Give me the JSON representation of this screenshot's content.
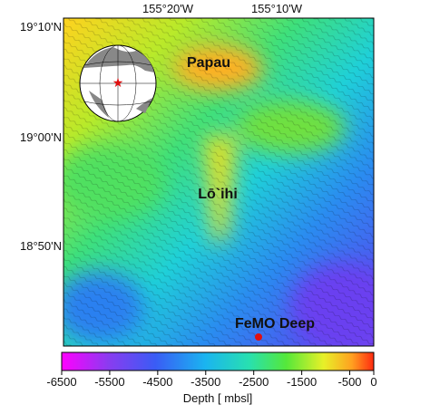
{
  "map": {
    "x_labels": [
      "155°20'W",
      "155°10'W"
    ],
    "y_labels": [
      "19°10'N",
      "19°00'N",
      "18°50'N"
    ],
    "annotations": [
      "Papau",
      "Lō`ihi",
      "FeMO Deep"
    ]
  },
  "colorbar": {
    "label": "Depth [ mbsl]",
    "lim": [
      -6500,
      0
    ],
    "ticks": [
      -6500,
      -5500,
      -4500,
      -3500,
      -2500,
      -1500,
      -500,
      0
    ]
  }
}
